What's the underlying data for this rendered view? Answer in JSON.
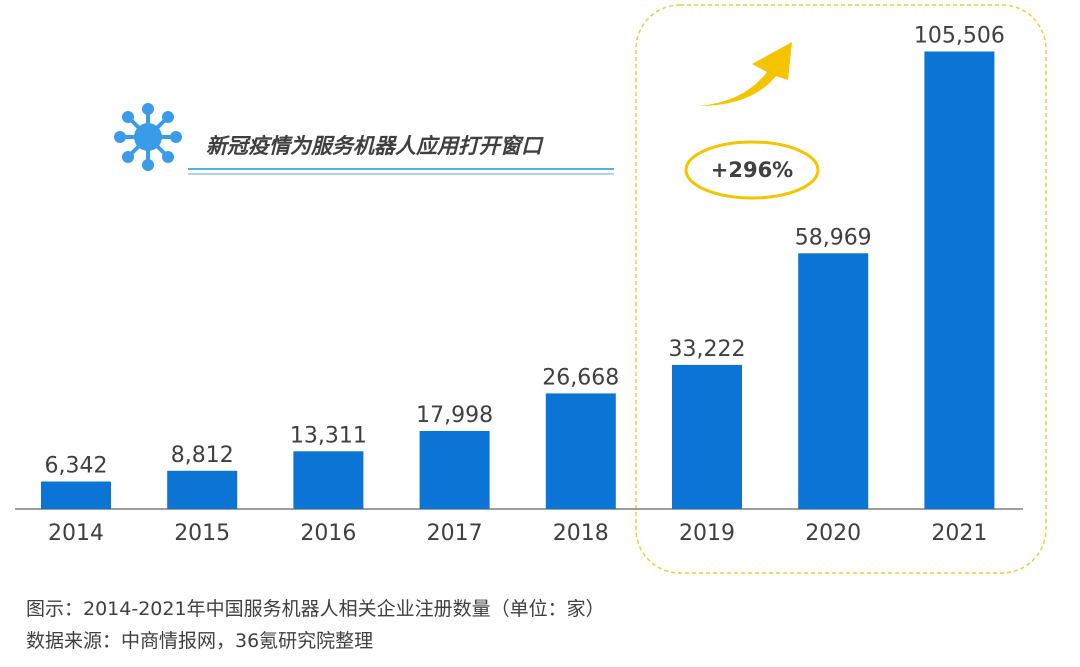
{
  "headline": "新冠疫情为服务机器人应用打开窗口",
  "growth_label": "+296%",
  "caption": "图示：2014-2021年中国服务机器人相关企业注册数量（单位：家）",
  "source": "数据来源：中商情报网，36氪研究院整理",
  "colors": {
    "bar": "#0b74d4",
    "accent": "#f5c400",
    "headline_icon": "#3a9be8",
    "underline": "#5aaee8"
  },
  "icons": {
    "headline": "virus-icon",
    "trend": "up-arrow-icon"
  },
  "chart_data": {
    "type": "bar",
    "categories": [
      "2014",
      "2015",
      "2016",
      "2017",
      "2018",
      "2019",
      "2020",
      "2021"
    ],
    "values": [
      6342,
      8812,
      13311,
      17998,
      26668,
      33222,
      58969,
      105506
    ],
    "value_labels": [
      "6,342",
      "8,812",
      "13,311",
      "17,998",
      "26,668",
      "33,222",
      "58,969",
      "105,506"
    ],
    "title": "",
    "xlabel": "",
    "ylabel": "",
    "ylim": [
      0,
      110000
    ],
    "grid": false,
    "legend": "none",
    "highlighted_categories": [
      "2019",
      "2020",
      "2021"
    ]
  }
}
